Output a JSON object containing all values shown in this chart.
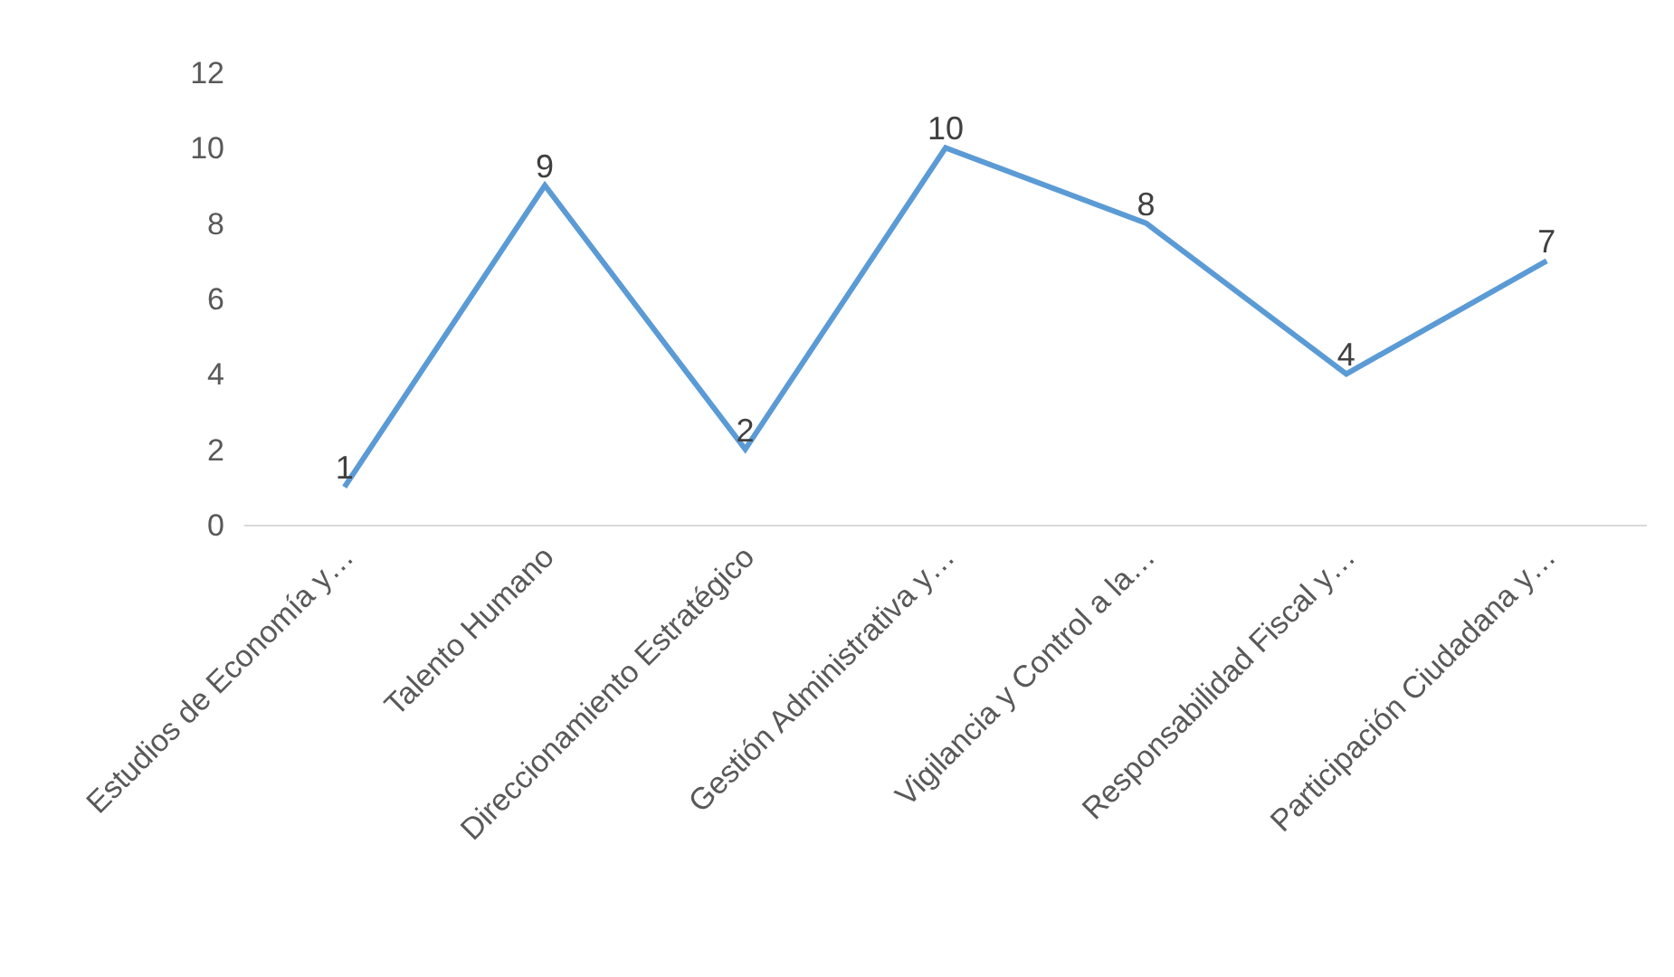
{
  "chart_data": {
    "type": "line",
    "categories": [
      "Estudios de Economía y…",
      "Talento Humano",
      "Direccionamiento Estratégico",
      "Gestión Administrativa y…",
      "Vigilancia y Control a la…",
      "Responsabilidad Fiscal y…",
      "Participación Ciudadana y…"
    ],
    "values": [
      1,
      9,
      2,
      10,
      8,
      4,
      7
    ],
    "color": "#5b9bd5",
    "ylim": [
      0,
      12
    ],
    "yticks": [
      0,
      2,
      4,
      6,
      8,
      10,
      12
    ],
    "legend": false,
    "marker": "none",
    "line_style": "solid",
    "data_labels": true
  }
}
